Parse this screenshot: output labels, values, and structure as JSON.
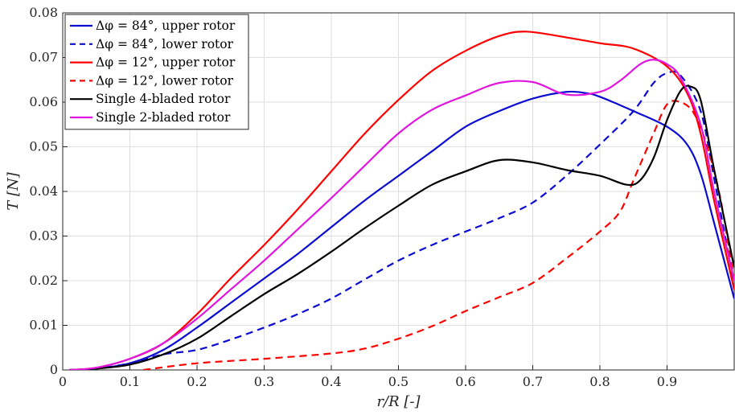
{
  "chart_data": {
    "type": "line",
    "xlabel": "r/R [-]",
    "ylabel": "T [N]",
    "xlim": [
      0,
      1
    ],
    "ylim": [
      0,
      0.08
    ],
    "x_ticks": [
      "0",
      "0.1",
      "0.2",
      "0.3",
      "0.4",
      "0.5",
      "0.6",
      "0.7",
      "0.8",
      "0.9"
    ],
    "y_ticks": [
      "0",
      "0.01",
      "0.02",
      "0.03",
      "0.04",
      "0.05",
      "0.06",
      "0.07",
      "0.08"
    ],
    "x_tick_values": [
      0,
      0.1,
      0.2,
      0.3,
      0.4,
      0.5,
      0.6,
      0.7,
      0.8,
      0.9
    ],
    "y_tick_values": [
      0,
      0.01,
      0.02,
      0.03,
      0.04,
      0.05,
      0.06,
      0.07,
      0.08
    ],
    "grid": true,
    "legend_position": "top-left",
    "series": [
      {
        "name": "Δφ = 84°, upper rotor",
        "color": "#0b0bd1",
        "dash": "solid",
        "x": [
          0.01,
          0.05,
          0.1,
          0.15,
          0.2,
          0.25,
          0.3,
          0.35,
          0.4,
          0.45,
          0.5,
          0.55,
          0.6,
          0.65,
          0.7,
          0.75,
          0.78,
          0.8,
          0.85,
          0.9,
          0.93,
          0.95,
          0.97,
          1.0
        ],
        "y": [
          0,
          0.0003,
          0.0015,
          0.0045,
          0.0095,
          0.015,
          0.0205,
          0.026,
          0.032,
          0.038,
          0.0435,
          0.049,
          0.0545,
          0.058,
          0.0608,
          0.0623,
          0.062,
          0.0612,
          0.058,
          0.0545,
          0.0505,
          0.044,
          0.033,
          0.016
        ]
      },
      {
        "name": "Δφ = 84°, lower rotor",
        "color": "#0b0bd1",
        "dash": "dashed",
        "x": [
          0.01,
          0.05,
          0.1,
          0.15,
          0.2,
          0.25,
          0.3,
          0.35,
          0.4,
          0.45,
          0.5,
          0.55,
          0.6,
          0.65,
          0.7,
          0.75,
          0.8,
          0.85,
          0.88,
          0.9,
          0.92,
          0.95,
          0.97,
          1.0
        ],
        "y": [
          0,
          0.0003,
          0.0015,
          0.0035,
          0.0045,
          0.0068,
          0.0095,
          0.0125,
          0.016,
          0.0203,
          0.0245,
          0.028,
          0.031,
          0.034,
          0.0375,
          0.0435,
          0.0505,
          0.058,
          0.0643,
          0.0665,
          0.066,
          0.058,
          0.043,
          0.019
        ]
      },
      {
        "name": "Δφ = 12°, upper rotor",
        "color": "#ff0000",
        "dash": "solid",
        "x": [
          0.01,
          0.05,
          0.1,
          0.15,
          0.2,
          0.25,
          0.3,
          0.35,
          0.4,
          0.45,
          0.5,
          0.55,
          0.6,
          0.65,
          0.69,
          0.75,
          0.8,
          0.85,
          0.9,
          0.93,
          0.95,
          0.97,
          1.0
        ],
        "y": [
          0,
          0.0005,
          0.0025,
          0.006,
          0.0125,
          0.0205,
          0.028,
          0.036,
          0.0445,
          0.053,
          0.0605,
          0.067,
          0.0715,
          0.0748,
          0.0758,
          0.0745,
          0.0732,
          0.072,
          0.068,
          0.062,
          0.053,
          0.038,
          0.018
        ]
      },
      {
        "name": "Δφ = 12°, lower rotor",
        "color": "#ff0000",
        "dash": "dashed",
        "x": [
          0.12,
          0.2,
          0.3,
          0.4,
          0.45,
          0.5,
          0.55,
          0.6,
          0.65,
          0.7,
          0.75,
          0.8,
          0.83,
          0.85,
          0.88,
          0.9,
          0.92,
          0.94,
          0.96,
          0.98,
          1.0
        ],
        "y": [
          0,
          0.0015,
          0.0025,
          0.0037,
          0.0048,
          0.007,
          0.0098,
          0.0132,
          0.0163,
          0.0195,
          0.025,
          0.031,
          0.0355,
          0.0425,
          0.053,
          0.0595,
          0.06,
          0.0575,
          0.05,
          0.038,
          0.02
        ]
      },
      {
        "name": "Single 4-bladed rotor",
        "color": "#000000",
        "dash": "solid",
        "x": [
          0.01,
          0.05,
          0.1,
          0.15,
          0.2,
          0.25,
          0.3,
          0.35,
          0.4,
          0.45,
          0.5,
          0.55,
          0.6,
          0.65,
          0.7,
          0.75,
          0.8,
          0.84,
          0.86,
          0.88,
          0.9,
          0.92,
          0.935,
          0.95,
          0.97,
          1.0
        ],
        "y": [
          0,
          0.0003,
          0.0012,
          0.0035,
          0.007,
          0.012,
          0.017,
          0.0215,
          0.0265,
          0.0318,
          0.0368,
          0.0415,
          0.0445,
          0.047,
          0.0465,
          0.0448,
          0.0435,
          0.0415,
          0.0425,
          0.0475,
          0.056,
          0.0625,
          0.0635,
          0.0605,
          0.045,
          0.023
        ]
      },
      {
        "name": "Single 2-bladed rotor",
        "color": "#e016e0",
        "dash": "solid",
        "x": [
          0.01,
          0.05,
          0.1,
          0.15,
          0.2,
          0.25,
          0.3,
          0.35,
          0.4,
          0.45,
          0.5,
          0.55,
          0.6,
          0.65,
          0.7,
          0.75,
          0.8,
          0.83,
          0.86,
          0.88,
          0.9,
          0.92,
          0.95,
          0.97,
          1.0
        ],
        "y": [
          0,
          0.0005,
          0.0025,
          0.006,
          0.0115,
          0.018,
          0.0245,
          0.0315,
          0.0385,
          0.0458,
          0.053,
          0.0583,
          0.0615,
          0.0643,
          0.0645,
          0.0617,
          0.0623,
          0.0648,
          0.0685,
          0.0695,
          0.0685,
          0.0655,
          0.055,
          0.04,
          0.02
        ]
      }
    ]
  }
}
